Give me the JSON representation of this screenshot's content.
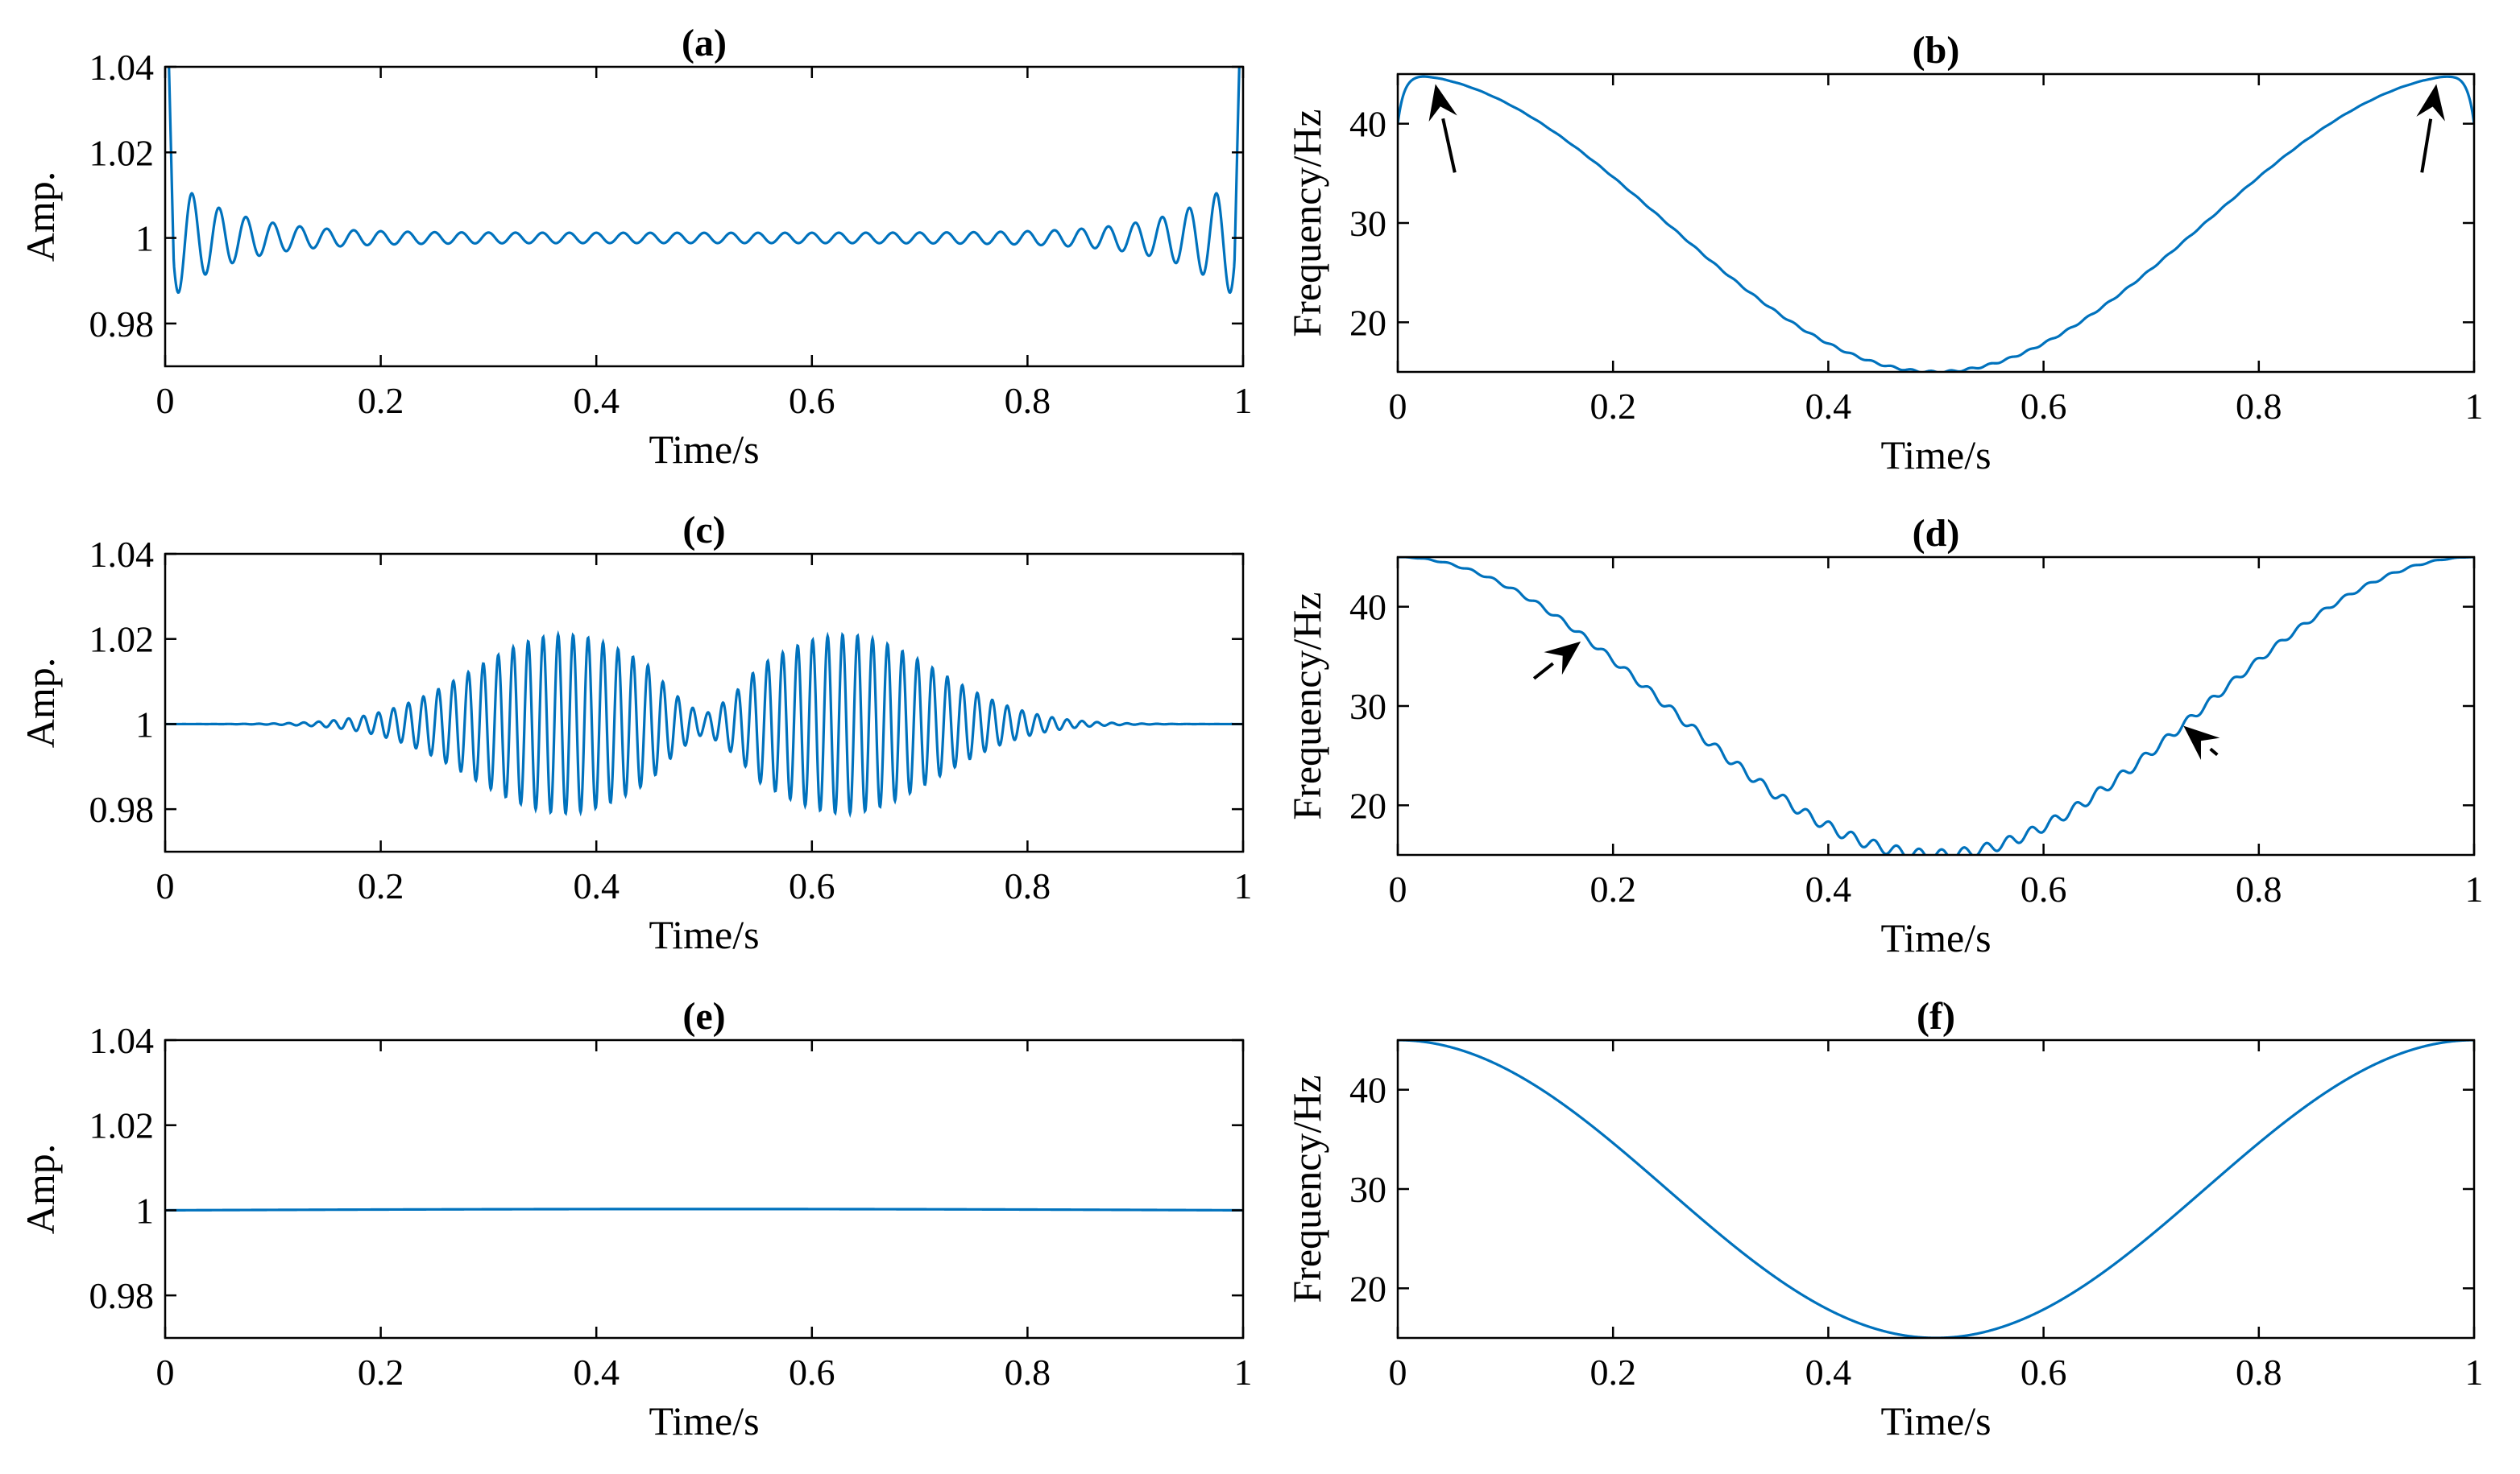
{
  "figure": {
    "line_color": "#0072BD",
    "axis_color": "#000000",
    "background": "#ffffff"
  },
  "chart_data": [
    {
      "id": "a",
      "type": "line",
      "title": "(a)",
      "xlabel": "Time/s",
      "ylabel": "Amp.",
      "xlim": [
        0,
        1
      ],
      "ylim": [
        0.97,
        1.04
      ],
      "xticks": [
        0,
        0.2,
        0.4,
        0.6,
        0.8,
        1
      ],
      "xtick_labels": [
        "0",
        "0.2",
        "0.4",
        "0.6",
        "0.8",
        "1"
      ],
      "yticks": [
        0.98,
        1.0,
        1.02,
        1.04
      ],
      "ytick_labels": [
        "0.98",
        "1",
        "1.02",
        "1.04"
      ],
      "series": [
        {
          "name": "amplitude",
          "function": "edge-decaying ripple",
          "base": 1.0,
          "edge_overshoot": 1.04,
          "ripple_amplitude": 0.011,
          "ripple_cycles": 40
        }
      ]
    },
    {
      "id": "b",
      "type": "line",
      "title": "(b)",
      "xlabel": "Time/s",
      "ylabel": "Frequency/Hz",
      "xlim": [
        0,
        1
      ],
      "ylim": [
        15,
        45
      ],
      "xticks": [
        0,
        0.2,
        0.4,
        0.6,
        0.8,
        1
      ],
      "xtick_labels": [
        "0",
        "0.2",
        "0.4",
        "0.6",
        "0.8",
        "1"
      ],
      "yticks": [
        20,
        30,
        40
      ],
      "ytick_labels": [
        "20",
        "30",
        "40"
      ],
      "series": [
        {
          "name": "instantaneous frequency",
          "function": "30+15*cos(2*pi*t)",
          "max": 45,
          "min": 15,
          "edge_dip": 40
        }
      ],
      "annotations": [
        {
          "type": "arrow",
          "at": [
            0.035,
            44
          ]
        },
        {
          "type": "arrow",
          "at": [
            0.965,
            44
          ]
        }
      ]
    },
    {
      "id": "c",
      "type": "line",
      "title": "(c)",
      "xlabel": "Time/s",
      "ylabel": "Amp.",
      "xlim": [
        0,
        1
      ],
      "ylim": [
        0.97,
        1.04
      ],
      "xticks": [
        0,
        0.2,
        0.4,
        0.6,
        0.8,
        1
      ],
      "xtick_labels": [
        "0",
        "0.2",
        "0.4",
        "0.6",
        "0.8",
        "1"
      ],
      "yticks": [
        0.98,
        1.0,
        1.02,
        1.04
      ],
      "ytick_labels": [
        "0.98",
        "1",
        "1.02",
        "1.04"
      ],
      "series": [
        {
          "name": "amplitude",
          "function": "modulated oscillation",
          "base": 1.0,
          "peak_deviation": 0.021,
          "peak_times": [
            0.37,
            0.63
          ]
        }
      ]
    },
    {
      "id": "d",
      "type": "line",
      "title": "(d)",
      "xlabel": "Time/s",
      "ylabel": "Frequency/Hz",
      "xlim": [
        0,
        1
      ],
      "ylim": [
        15,
        45
      ],
      "xticks": [
        0,
        0.2,
        0.4,
        0.6,
        0.8,
        1
      ],
      "xtick_labels": [
        "0",
        "0.2",
        "0.4",
        "0.6",
        "0.8",
        "1"
      ],
      "yticks": [
        20,
        30,
        40
      ],
      "ytick_labels": [
        "20",
        "30",
        "40"
      ],
      "series": [
        {
          "name": "instantaneous frequency",
          "function": "30+15*cos(2*pi*t) with small ripple",
          "max": 45,
          "min": 15
        }
      ],
      "annotations": [
        {
          "type": "arrow",
          "at": [
            0.17,
            36.5
          ]
        },
        {
          "type": "arrow",
          "at": [
            0.73,
            28
          ]
        }
      ]
    },
    {
      "id": "e",
      "type": "line",
      "title": "(e)",
      "xlabel": "Time/s",
      "ylabel": "Amp.",
      "xlim": [
        0,
        1
      ],
      "ylim": [
        0.97,
        1.04
      ],
      "xticks": [
        0,
        0.2,
        0.4,
        0.6,
        0.8,
        1
      ],
      "xtick_labels": [
        "0",
        "0.2",
        "0.4",
        "0.6",
        "0.8",
        "1"
      ],
      "yticks": [
        0.98,
        1.0,
        1.02,
        1.04
      ],
      "ytick_labels": [
        "0.98",
        "1",
        "1.02",
        "1.04"
      ],
      "series": [
        {
          "name": "amplitude",
          "function": "near-constant",
          "base": 1.0,
          "center_value": 1.0003
        }
      ]
    },
    {
      "id": "f",
      "type": "line",
      "title": "(f)",
      "xlabel": "Time/s",
      "ylabel": "Frequency/Hz",
      "xlim": [
        0,
        1
      ],
      "ylim": [
        15,
        45
      ],
      "xticks": [
        0,
        0.2,
        0.4,
        0.6,
        0.8,
        1
      ],
      "xtick_labels": [
        "0",
        "0.2",
        "0.4",
        "0.6",
        "0.8",
        "1"
      ],
      "yticks": [
        20,
        30,
        40
      ],
      "ytick_labels": [
        "20",
        "30",
        "40"
      ],
      "series": [
        {
          "name": "instantaneous frequency",
          "function": "30+15*cos(2*pi*t)",
          "max": 45,
          "min": 15
        }
      ]
    }
  ]
}
